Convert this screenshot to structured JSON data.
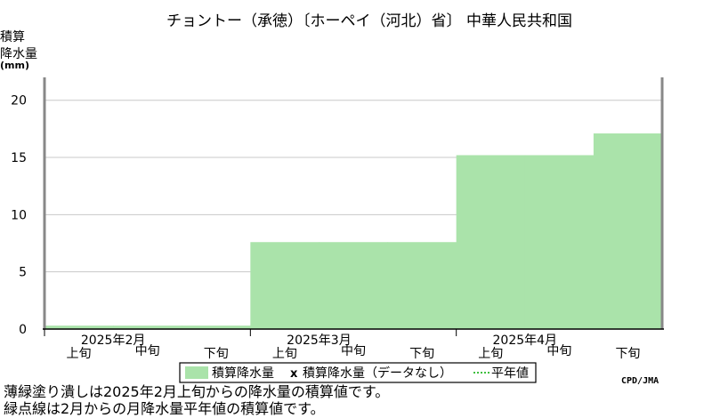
{
  "title": "チョントー（承徳）〔ホーペイ（河北）省〕 中華人民共和国",
  "ylabel_lines": [
    "積算",
    "降水量",
    "(mm)"
  ],
  "credit": "CPD/JMA",
  "legend": {
    "series_label": "積算降水量",
    "missing_marker": "x",
    "missing_label": "積算降水量（データなし）",
    "normal_label": "平年値"
  },
  "notes": [
    "薄緑塗り潰しは2025年2月上旬からの降水量の積算値です。",
    "緑点線は2月からの月降水量平年値の積算値です。"
  ],
  "colors": {
    "fill": "#aae3aa",
    "grid": "#c8c8c8",
    "axis": "#888888",
    "normal_line": "#00aa00"
  },
  "chart_data": {
    "type": "area",
    "title": "チョントー（承徳）〔ホーペイ（河北）省〕 中華人民共和国",
    "ylabel": "積算降水量(mm)",
    "ylim": [
      0,
      22
    ],
    "yticks": [
      0,
      5,
      10,
      15,
      20
    ],
    "grid": true,
    "legend_position": "bottom-center",
    "months": [
      "2025年2月",
      "2025年3月",
      "2025年4月"
    ],
    "periods": [
      "上旬",
      "中旬",
      "下旬",
      "上旬",
      "中旬",
      "下旬",
      "上旬",
      "中旬",
      "下旬"
    ],
    "series": [
      {
        "name": "積算降水量",
        "values": [
          0.3,
          0.3,
          0.3,
          7.6,
          7.6,
          7.6,
          15.2,
          15.2,
          17.1
        ]
      }
    ]
  }
}
